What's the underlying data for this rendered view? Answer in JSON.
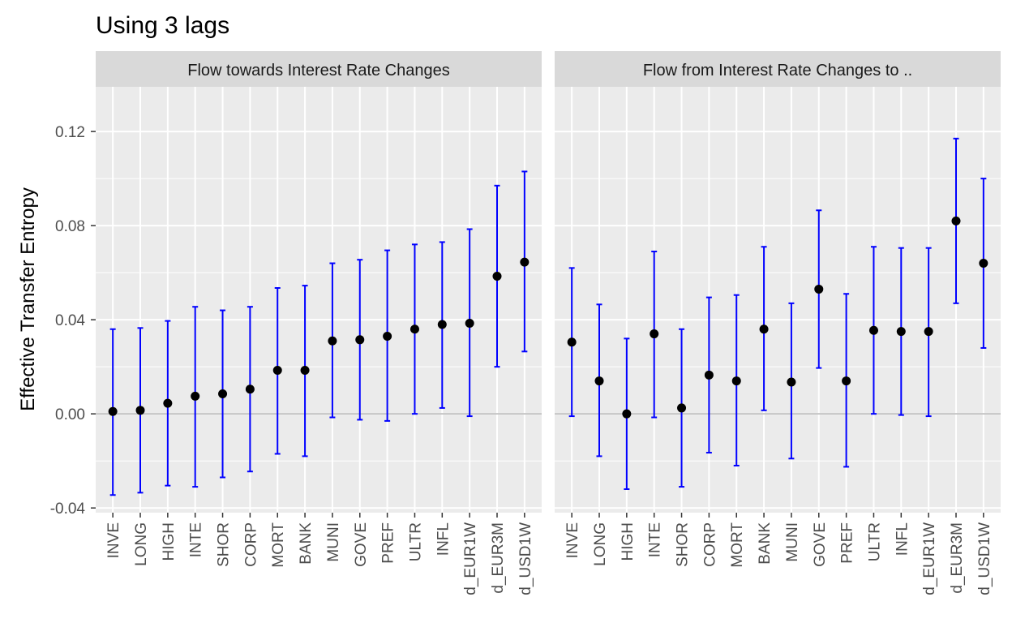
{
  "chart_data": {
    "type": "errorbar",
    "title": "Using 3 lags",
    "ylabel": "Effective Transfer Entropy",
    "xlabel": "",
    "ylim": [
      -0.042,
      0.139
    ],
    "yticks": [
      -0.04,
      0.0,
      0.04,
      0.08,
      0.12
    ],
    "ytick_labels": [
      "-0.04",
      "0.00",
      "0.04",
      "0.08",
      "0.12"
    ],
    "reference_line": 0,
    "point_color": "#000000",
    "errorbar_color": "#0000ff",
    "panel_background": "#ebebeb",
    "strip_background": "#d9d9d9",
    "grid": true,
    "panels": [
      {
        "label": "Flow towards Interest Rate Changes",
        "categories": [
          "INVE",
          "LONG",
          "HIGH",
          "INTE",
          "SHOR",
          "CORP",
          "MORT",
          "BANK",
          "MUNI",
          "GOVE",
          "PREF",
          "ULTR",
          "INFL",
          "d_EUR1W",
          "d_EUR3M",
          "d_USD1W"
        ],
        "values": [
          0.001,
          0.0015,
          0.0045,
          0.0075,
          0.0085,
          0.0105,
          0.0185,
          0.0185,
          0.031,
          0.0315,
          0.033,
          0.036,
          0.038,
          0.0385,
          0.0585,
          0.0645
        ],
        "lower": [
          -0.0345,
          -0.0335,
          -0.0305,
          -0.031,
          -0.027,
          -0.0245,
          -0.017,
          -0.018,
          -0.0015,
          -0.0025,
          -0.003,
          0.0,
          0.0025,
          -0.001,
          0.02,
          0.0265
        ],
        "upper": [
          0.036,
          0.0365,
          0.0395,
          0.0455,
          0.044,
          0.0455,
          0.0535,
          0.0545,
          0.064,
          0.0655,
          0.0695,
          0.072,
          0.073,
          0.0785,
          0.097,
          0.103
        ]
      },
      {
        "label": "Flow from Interest Rate Changes to ..",
        "categories": [
          "INVE",
          "LONG",
          "HIGH",
          "INTE",
          "SHOR",
          "CORP",
          "MORT",
          "BANK",
          "MUNI",
          "GOVE",
          "PREF",
          "ULTR",
          "INFL",
          "d_EUR1W",
          "d_EUR3M",
          "d_USD1W"
        ],
        "values": [
          0.0305,
          0.014,
          0.0,
          0.034,
          0.0025,
          0.0165,
          0.014,
          0.036,
          0.0135,
          0.053,
          0.014,
          0.0355,
          0.035,
          0.035,
          0.082,
          0.064
        ],
        "lower": [
          -0.001,
          -0.018,
          -0.032,
          -0.0015,
          -0.031,
          -0.0165,
          -0.022,
          0.0015,
          -0.019,
          0.0195,
          -0.0225,
          0.0,
          -0.0005,
          -0.001,
          0.047,
          0.028
        ],
        "upper": [
          0.062,
          0.0465,
          0.032,
          0.069,
          0.036,
          0.0495,
          0.0505,
          0.071,
          0.047,
          0.0865,
          0.051,
          0.071,
          0.0705,
          0.0705,
          0.117,
          0.1
        ]
      }
    ]
  }
}
